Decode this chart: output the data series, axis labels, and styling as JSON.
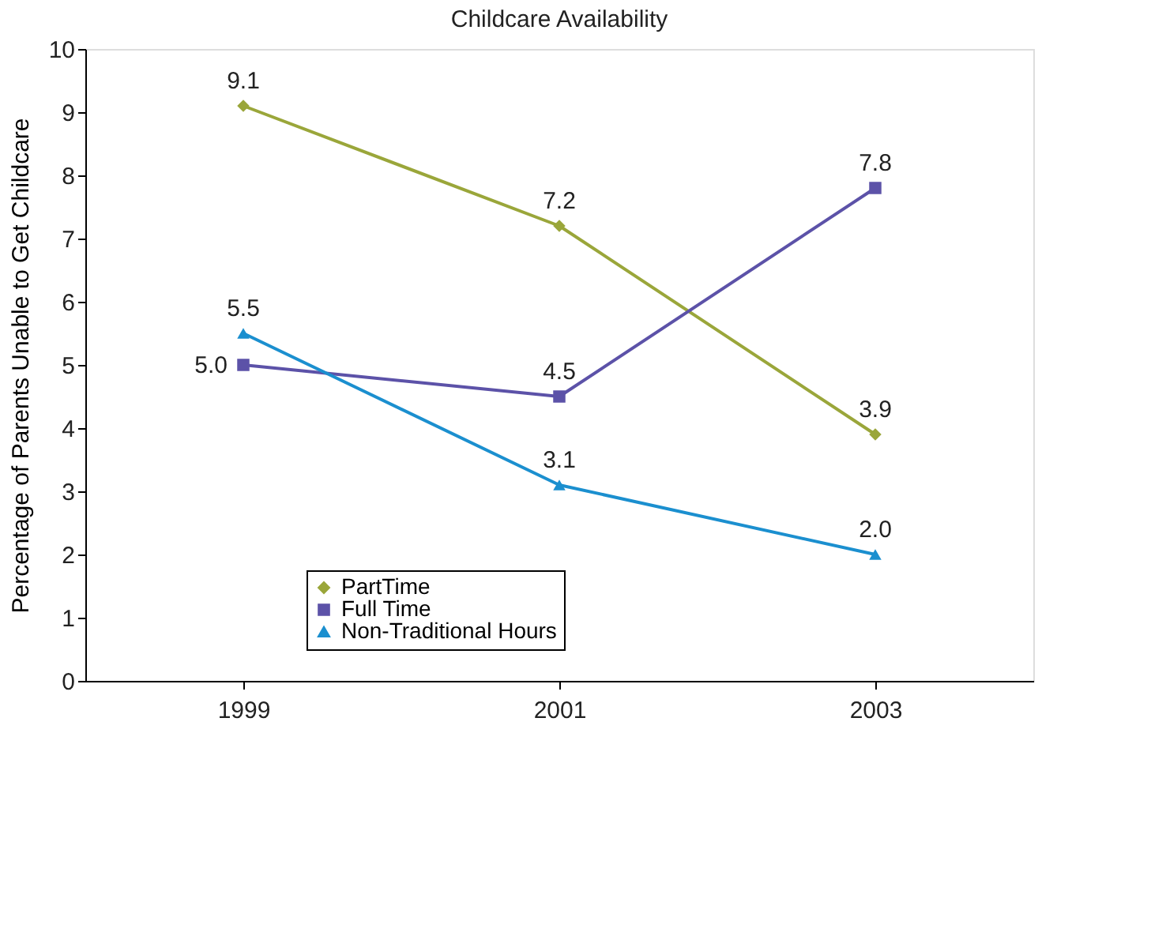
{
  "chart_data": {
    "type": "line",
    "title": "Childcare Availability",
    "ylabel": "Percentage of Parents Unable to Get Childcare",
    "categories": [
      "1999",
      "2001",
      "2003"
    ],
    "series": [
      {
        "name": "PartTime",
        "color": "#9aa63a",
        "marker": "diamond",
        "values": [
          9.1,
          7.2,
          3.9
        ],
        "value_labels": [
          "9.1",
          "7.2",
          "3.9"
        ]
      },
      {
        "name": "Full Time",
        "color": "#5c52a8",
        "marker": "square",
        "values": [
          5.0,
          4.5,
          7.8
        ],
        "value_labels": [
          "5.0",
          "4.5",
          "7.8"
        ]
      },
      {
        "name": "Non-Traditional Hours",
        "color": "#1b8fcf",
        "marker": "triangle",
        "values": [
          5.5,
          3.1,
          2.0
        ],
        "value_labels": [
          "5.5",
          "3.1",
          "2.0"
        ]
      }
    ],
    "ylim": [
      0,
      10
    ],
    "yticks": [
      0,
      1,
      2,
      3,
      4,
      5,
      6,
      7,
      8,
      9,
      10
    ],
    "grid": false,
    "legend": "bottom left"
  }
}
